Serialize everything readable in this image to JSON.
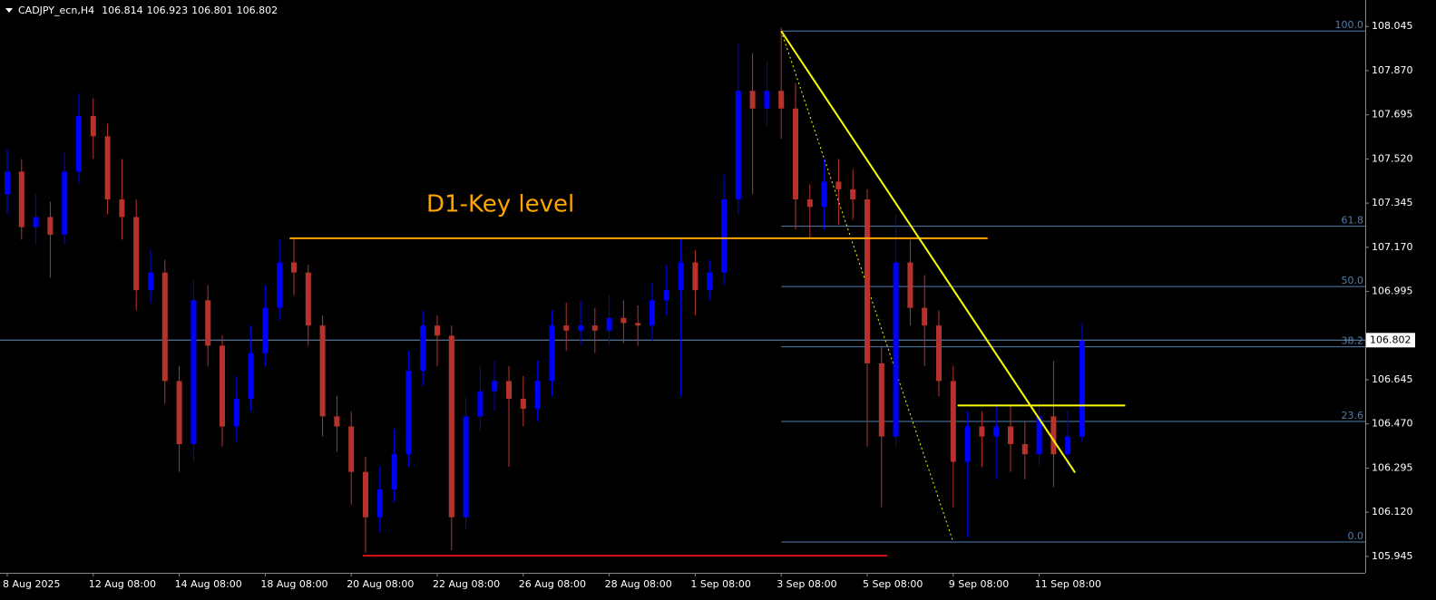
{
  "chart_data": {
    "type": "candlestick",
    "header": {
      "symbol": "CADJPY_ecn,H4",
      "quote": [
        106.814,
        106.923,
        106.801,
        106.802
      ]
    },
    "up_color": "#0000ff",
    "down_color": "#b8322c",
    "categories": [
      "8 Aug 2025",
      null,
      null,
      null,
      null,
      null,
      "12 Aug 08:00",
      null,
      null,
      null,
      null,
      null,
      "14 Aug 08:00",
      null,
      null,
      null,
      null,
      null,
      "18 Aug 08:00",
      null,
      null,
      null,
      null,
      null,
      "20 Aug 08:00",
      null,
      null,
      null,
      null,
      null,
      "22 Aug 08:00",
      null,
      null,
      null,
      null,
      null,
      "26 Aug 08:00",
      null,
      null,
      null,
      null,
      null,
      "28 Aug 08:00",
      null,
      null,
      null,
      null,
      null,
      "1 Sep 08:00",
      null,
      null,
      null,
      null,
      null,
      "3 Sep 08:00",
      null,
      null,
      null,
      null,
      null,
      "5 Sep 08:00",
      null,
      null,
      null,
      null,
      null,
      "9 Sep 08:00",
      null,
      null,
      null,
      null,
      null,
      "11 Sep 08:00",
      null,
      null,
      null
    ],
    "open": [
      107.38,
      107.47,
      107.25,
      107.29,
      107.22,
      107.47,
      107.69,
      107.61,
      107.36,
      107.29,
      107.0,
      107.07,
      106.64,
      106.39,
      106.96,
      106.78,
      106.46,
      106.57,
      106.75,
      106.93,
      107.11,
      107.07,
      106.86,
      106.5,
      106.46,
      106.28,
      106.1,
      106.21,
      106.35,
      106.68,
      106.86,
      106.82,
      106.1,
      106.5,
      106.6,
      106.64,
      106.57,
      106.53,
      106.64,
      106.86,
      106.84,
      106.86,
      106.84,
      106.89,
      106.87,
      106.86,
      106.96,
      107.0,
      107.11,
      107.0,
      107.07,
      107.36,
      107.79,
      107.72,
      107.79,
      107.72,
      107.36,
      107.33,
      107.43,
      107.4,
      107.36,
      106.71,
      106.42,
      107.11,
      106.93,
      106.86,
      106.64,
      106.32,
      106.46,
      106.42,
      106.46,
      106.39,
      106.35,
      106.5,
      106.35,
      106.42
    ],
    "high": [
      107.56,
      107.52,
      107.38,
      107.35,
      107.55,
      107.78,
      107.76,
      107.66,
      107.52,
      107.36,
      107.16,
      107.12,
      106.7,
      107.04,
      107.02,
      106.82,
      106.66,
      106.86,
      107.02,
      107.2,
      107.21,
      107.1,
      106.9,
      106.58,
      106.52,
      106.34,
      106.3,
      106.45,
      106.76,
      106.92,
      106.9,
      106.86,
      106.58,
      106.7,
      106.72,
      106.7,
      106.66,
      106.72,
      106.92,
      106.95,
      106.96,
      106.93,
      106.98,
      106.96,
      106.94,
      107.03,
      107.1,
      107.21,
      107.16,
      107.12,
      107.46,
      107.98,
      107.94,
      107.91,
      108.04,
      107.82,
      107.42,
      107.52,
      107.52,
      107.48,
      107.4,
      106.78,
      107.3,
      107.2,
      107.06,
      106.92,
      106.7,
      106.52,
      106.52,
      106.55,
      106.54,
      106.48,
      106.56,
      106.72,
      106.52,
      106.87
    ],
    "low": [
      107.3,
      107.2,
      107.18,
      107.05,
      107.18,
      107.42,
      107.52,
      107.3,
      107.2,
      106.92,
      106.95,
      106.55,
      106.28,
      106.32,
      106.7,
      106.38,
      106.4,
      106.52,
      106.7,
      106.88,
      106.98,
      106.78,
      106.42,
      106.36,
      106.15,
      105.96,
      106.04,
      106.16,
      106.3,
      106.62,
      106.7,
      105.97,
      106.05,
      106.44,
      106.52,
      106.3,
      106.46,
      106.48,
      106.58,
      106.76,
      106.78,
      106.75,
      106.78,
      106.79,
      106.78,
      106.8,
      106.9,
      106.58,
      106.9,
      106.96,
      107.02,
      107.3,
      107.38,
      107.65,
      107.6,
      107.24,
      107.21,
      107.24,
      107.26,
      107.28,
      106.38,
      106.14,
      106.38,
      106.86,
      106.7,
      106.58,
      106.14,
      106.02,
      106.3,
      106.25,
      106.28,
      106.25,
      106.3,
      106.22,
      106.3,
      106.4
    ],
    "close": [
      107.47,
      107.25,
      107.29,
      107.22,
      107.47,
      107.69,
      107.61,
      107.36,
      107.29,
      107.0,
      107.07,
      106.64,
      106.39,
      106.96,
      106.78,
      106.46,
      106.57,
      106.75,
      106.93,
      107.11,
      107.07,
      106.86,
      106.5,
      106.46,
      106.28,
      106.1,
      106.21,
      106.35,
      106.68,
      106.86,
      106.82,
      106.1,
      106.5,
      106.6,
      106.64,
      106.57,
      106.53,
      106.64,
      106.86,
      106.84,
      106.86,
      106.84,
      106.89,
      106.87,
      106.86,
      106.96,
      107.0,
      107.11,
      107.0,
      107.07,
      107.36,
      107.79,
      107.72,
      107.79,
      107.72,
      107.36,
      107.33,
      107.43,
      107.4,
      107.36,
      106.71,
      106.42,
      107.11,
      106.93,
      106.86,
      106.64,
      106.32,
      106.46,
      106.42,
      106.46,
      106.39,
      106.35,
      106.5,
      106.35,
      106.42,
      106.8
    ],
    "ylim": [
      105.88,
      108.15
    ],
    "yticks": [
      108.045,
      {
        "value": 107.87,
        "label": "107.870"
      },
      107.695,
      {
        "value": 107.52,
        "label": "107.520"
      },
      107.345,
      {
        "value": 107.17,
        "label": "107.170"
      },
      106.995,
      106.645,
      {
        "value": 106.47,
        "label": "106.470"
      },
      106.295,
      {
        "value": 106.12,
        "label": "106.120"
      },
      105.945
    ],
    "last_price": 106.802,
    "key_level": {
      "label": "D1-Key level",
      "value": 107.206,
      "color": "#ffa500"
    },
    "support": {
      "value": 105.948,
      "color": "#e01010"
    },
    "resistance": {
      "value": 106.543,
      "color": "#ffff00"
    },
    "trendline": {
      "from": 108.027,
      "to": 106.277,
      "color": "#ffff00"
    },
    "fibonacci": {
      "low": 106.002,
      "high": 108.027,
      "color": "#4f7fb0",
      "levels": [
        {
          "value": 100,
          "label": "100.0"
        },
        61.8,
        {
          "value": 50,
          "label": "50.0"
        },
        38.2,
        23.6,
        {
          "value": 0,
          "label": "0.0"
        }
      ]
    }
  }
}
